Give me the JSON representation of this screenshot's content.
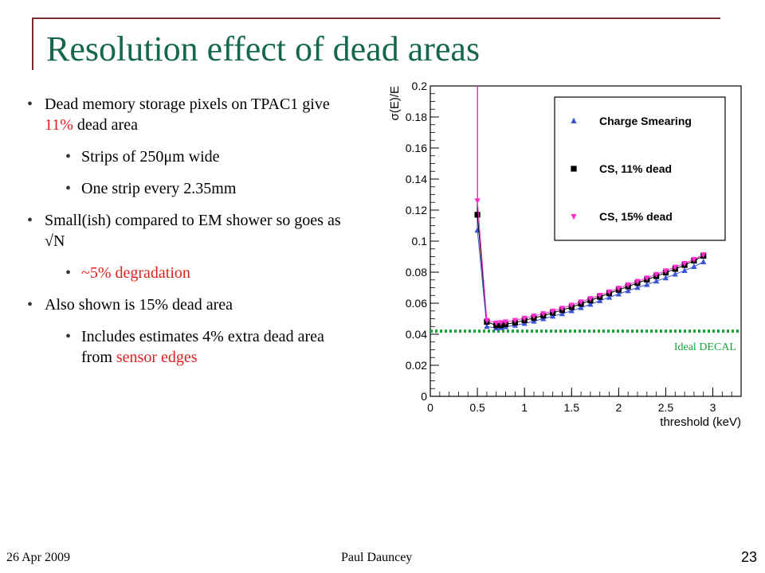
{
  "title": "Resolution effect of dead areas",
  "bullets": [
    {
      "level": 1,
      "parts": [
        {
          "text": "Dead memory storage pixels on TPAC1 give "
        },
        {
          "text": "11%",
          "red": true
        },
        {
          "text": " dead area"
        }
      ]
    },
    {
      "level": 2,
      "parts": [
        {
          "text": "Strips of 250μm wide"
        }
      ]
    },
    {
      "level": 2,
      "parts": [
        {
          "text": "One strip every 2.35mm"
        }
      ]
    },
    {
      "level": 1,
      "parts": [
        {
          "text": "Small(ish) compared to EM shower so goes as √N"
        }
      ]
    },
    {
      "level": 2,
      "parts": [
        {
          "text": "~5% degradation",
          "red": true
        }
      ]
    },
    {
      "level": 1,
      "parts": [
        {
          "text": "Also shown is 15% dead area"
        }
      ]
    },
    {
      "level": 2,
      "parts": [
        {
          "text": "Includes estimates 4% extra dead area from "
        },
        {
          "text": "sensor edges",
          "red": true
        }
      ]
    }
  ],
  "footer": {
    "date": "26 Apr 2009",
    "author": "Paul Dauncey",
    "page": "23"
  },
  "chart_data": {
    "type": "scatter",
    "title": "",
    "xlabel": "threshold (keV)",
    "ylabel": "σ(E)/E",
    "xlim": [
      0,
      3.3
    ],
    "ylim": [
      0,
      0.2
    ],
    "xticks": [
      "0",
      "0.5",
      "1",
      "1.5",
      "2",
      "2.5",
      "3"
    ],
    "yticks": [
      "0",
      "0.02",
      "0.04",
      "0.06",
      "0.08",
      "0.1",
      "0.12",
      "0.14",
      "0.16",
      "0.18",
      "0.2"
    ],
    "legend_position": "top-right",
    "grid": false,
    "reference_line": {
      "label": "Ideal DECAL",
      "y": 0.042,
      "color": "#1aa33a"
    },
    "series": [
      {
        "name": "Charge Smearing",
        "marker": "triangle-up",
        "color": "#3b55d4",
        "x": [
          0.5,
          0.6,
          0.7,
          0.75,
          0.8,
          0.9,
          1.0,
          1.1,
          1.2,
          1.3,
          1.4,
          1.5,
          1.6,
          1.7,
          1.8,
          1.9,
          2.0,
          2.1,
          2.2,
          2.3,
          2.4,
          2.5,
          2.6,
          2.7,
          2.8,
          2.9
        ],
        "y": [
          0.107,
          0.045,
          0.044,
          0.0442,
          0.0448,
          0.0458,
          0.047,
          0.0484,
          0.05,
          0.0516,
          0.0532,
          0.0551,
          0.0571,
          0.0593,
          0.0616,
          0.0638,
          0.0659,
          0.068,
          0.0701,
          0.072,
          0.0742,
          0.0763,
          0.0787,
          0.081,
          0.0836,
          0.0866
        ]
      },
      {
        "name": "CS, 11% dead",
        "marker": "square",
        "color": "#000000",
        "x": [
          0.5,
          0.6,
          0.7,
          0.75,
          0.8,
          0.9,
          1.0,
          1.1,
          1.2,
          1.3,
          1.4,
          1.5,
          1.6,
          1.7,
          1.8,
          1.9,
          2.0,
          2.1,
          2.2,
          2.3,
          2.4,
          2.5,
          2.6,
          2.7,
          2.8,
          2.9
        ],
        "y": [
          0.117,
          0.048,
          0.0457,
          0.0458,
          0.0465,
          0.0475,
          0.049,
          0.0505,
          0.052,
          0.0538,
          0.0556,
          0.0575,
          0.0596,
          0.0618,
          0.0641,
          0.0664,
          0.0686,
          0.0708,
          0.073,
          0.0752,
          0.0774,
          0.0797,
          0.0821,
          0.0846,
          0.0874,
          0.0905
        ]
      },
      {
        "name": "CS, 15% dead",
        "marker": "triangle-down",
        "color": "#ff2fd0",
        "x": [
          0.5,
          0.6,
          0.7,
          0.75,
          0.8,
          0.9,
          1.0,
          1.1,
          1.2,
          1.3,
          1.4,
          1.5,
          1.6,
          1.7,
          1.8,
          1.9,
          2.0,
          2.1,
          2.2,
          2.3,
          2.4,
          2.5,
          2.6,
          2.7,
          2.8,
          2.9
        ],
        "y": [
          0.126,
          0.049,
          0.0473,
          0.0475,
          0.048,
          0.049,
          0.0504,
          0.0518,
          0.0533,
          0.055,
          0.0568,
          0.0588,
          0.0609,
          0.063,
          0.0652,
          0.0674,
          0.0697,
          0.0719,
          0.0741,
          0.0763,
          0.0786,
          0.0809,
          0.0833,
          0.0857,
          0.0883,
          0.0913
        ]
      }
    ]
  }
}
